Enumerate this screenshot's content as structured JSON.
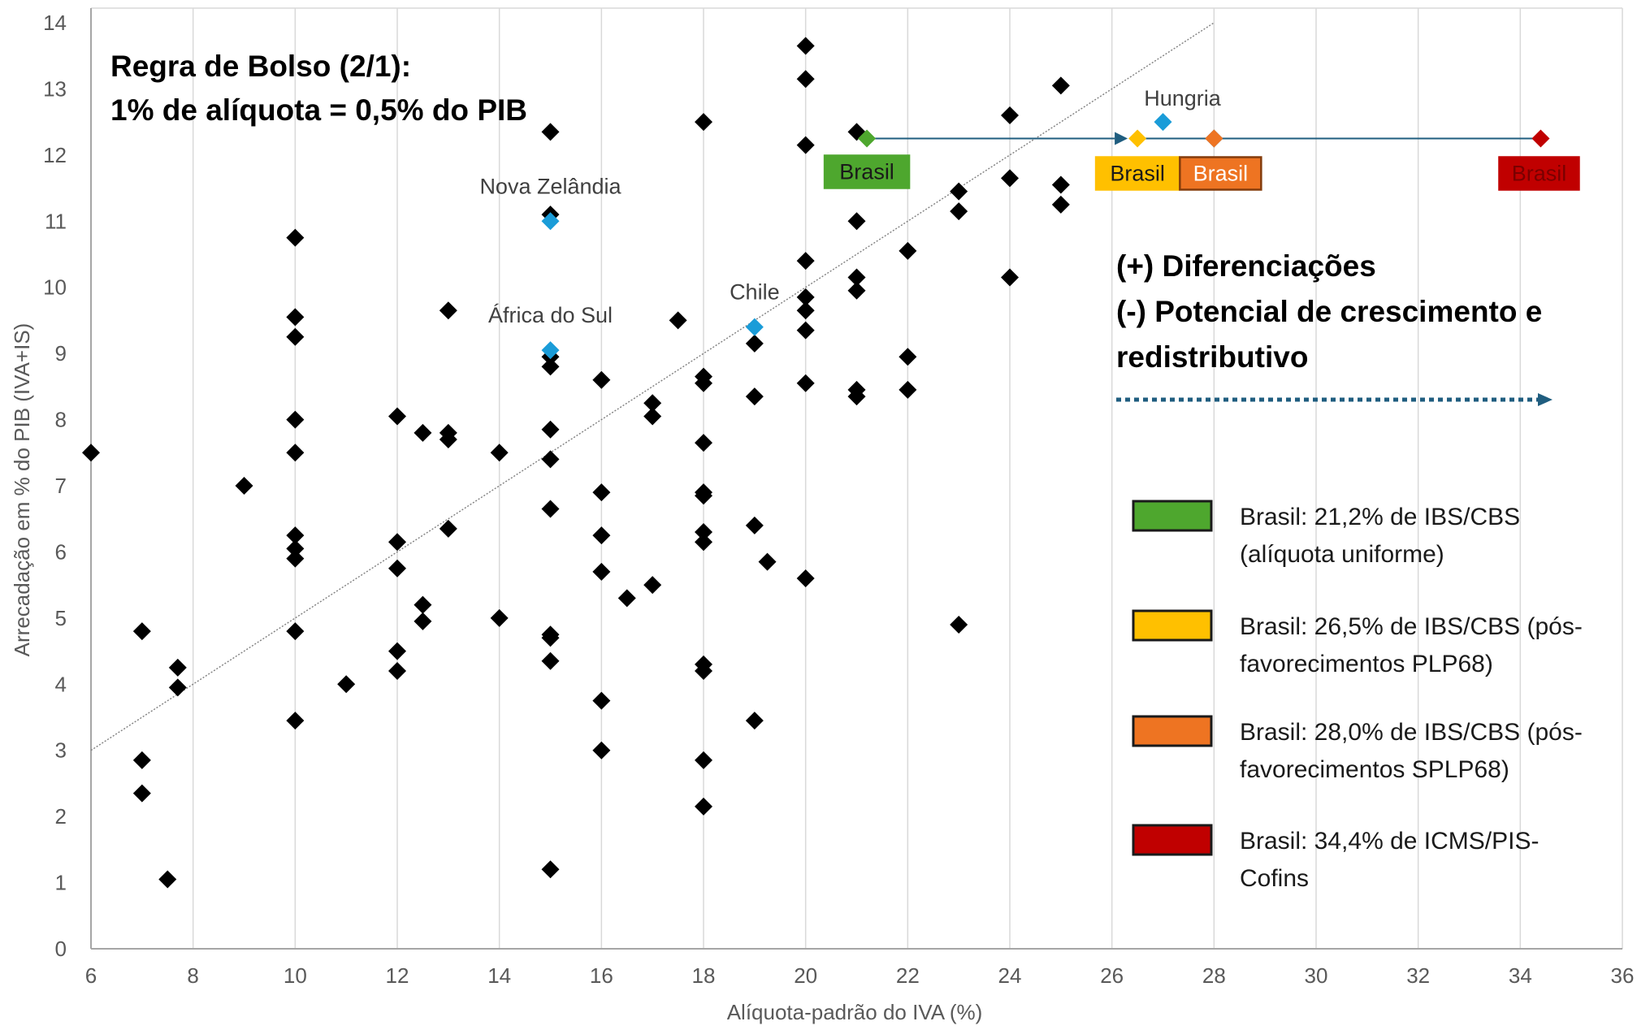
{
  "chart_data": {
    "type": "scatter",
    "xlabel": "Alíquota-padrão do IVA (%)",
    "ylabel": "Arrecadação em % do PIB (IVA+IS)",
    "xlim": [
      6,
      36
    ],
    "ylim": [
      0,
      14
    ],
    "x_ticks": [
      6,
      8,
      10,
      12,
      14,
      16,
      18,
      20,
      22,
      24,
      26,
      28,
      30,
      32,
      34,
      36
    ],
    "y_ticks": [
      0,
      1,
      2,
      3,
      4,
      5,
      6,
      7,
      8,
      9,
      10,
      11,
      12,
      13,
      14
    ],
    "grid": "vertical",
    "colors": {
      "points": "#000000",
      "highlight": "#1a9cd8",
      "brasil_uniform": "#4ea72e",
      "brasil_plp68": "#ffc000",
      "brasil_splp68": "#ee7422",
      "brasil_icms": "#c00000",
      "arrow": "#1f5d7f"
    },
    "trend_line": {
      "x": [
        6,
        28
      ],
      "y": [
        3,
        14
      ]
    },
    "series": [
      {
        "points": [
          [
            6,
            7.5
          ],
          [
            7,
            4.8
          ],
          [
            7,
            2.85
          ],
          [
            7,
            2.35
          ],
          [
            7.5,
            1.05
          ],
          [
            7.7,
            4.25
          ],
          [
            7.7,
            3.95
          ],
          [
            9,
            7.0
          ],
          [
            10,
            10.75
          ],
          [
            10,
            9.55
          ],
          [
            10,
            9.25
          ],
          [
            10,
            8.0
          ],
          [
            10,
            7.5
          ],
          [
            10,
            6.25
          ],
          [
            10,
            6.05
          ],
          [
            10,
            5.9
          ],
          [
            10,
            4.8
          ],
          [
            10,
            3.45
          ],
          [
            11,
            4.0
          ],
          [
            12,
            8.05
          ],
          [
            12,
            6.15
          ],
          [
            12,
            5.75
          ],
          [
            12,
            4.5
          ],
          [
            12,
            4.2
          ],
          [
            12.5,
            7.8
          ],
          [
            12.5,
            5.2
          ],
          [
            12.5,
            4.95
          ],
          [
            13,
            9.65
          ],
          [
            13,
            7.8
          ],
          [
            13,
            7.7
          ],
          [
            13,
            6.35
          ],
          [
            14,
            7.5
          ],
          [
            14,
            5.0
          ],
          [
            15,
            12.35
          ],
          [
            15,
            11.1
          ],
          [
            15,
            8.95
          ],
          [
            15,
            8.8
          ],
          [
            15,
            7.85
          ],
          [
            15,
            7.4
          ],
          [
            15,
            6.65
          ],
          [
            15,
            4.75
          ],
          [
            15,
            4.7
          ],
          [
            15,
            4.35
          ],
          [
            15,
            1.2
          ],
          [
            16,
            8.6
          ],
          [
            16,
            6.9
          ],
          [
            16,
            6.25
          ],
          [
            16,
            5.7
          ],
          [
            16,
            3.75
          ],
          [
            16,
            3.0
          ],
          [
            16.5,
            5.3
          ],
          [
            17,
            8.25
          ],
          [
            17,
            8.05
          ],
          [
            17,
            5.5
          ],
          [
            17.5,
            9.5
          ],
          [
            18,
            12.5
          ],
          [
            18,
            8.65
          ],
          [
            18,
            8.55
          ],
          [
            18,
            7.65
          ],
          [
            18,
            6.9
          ],
          [
            18,
            6.85
          ],
          [
            18,
            6.3
          ],
          [
            18,
            6.15
          ],
          [
            18,
            4.3
          ],
          [
            18,
            4.2
          ],
          [
            18,
            2.85
          ],
          [
            18,
            2.15
          ],
          [
            19,
            9.15
          ],
          [
            19,
            8.35
          ],
          [
            19,
            6.4
          ],
          [
            19,
            3.45
          ],
          [
            19.25,
            5.85
          ],
          [
            20,
            13.65
          ],
          [
            20,
            13.15
          ],
          [
            20,
            12.15
          ],
          [
            20,
            10.4
          ],
          [
            20,
            9.85
          ],
          [
            20,
            9.65
          ],
          [
            20,
            9.35
          ],
          [
            20,
            8.55
          ],
          [
            20,
            5.6
          ],
          [
            21,
            12.35
          ],
          [
            21,
            11.0
          ],
          [
            21,
            10.15
          ],
          [
            21,
            9.95
          ],
          [
            21,
            8.45
          ],
          [
            21,
            8.35
          ],
          [
            22,
            10.55
          ],
          [
            22,
            8.95
          ],
          [
            22,
            8.45
          ],
          [
            23,
            11.45
          ],
          [
            23,
            11.15
          ],
          [
            23,
            4.9
          ],
          [
            24,
            12.6
          ],
          [
            24,
            11.65
          ],
          [
            24,
            10.15
          ],
          [
            25,
            13.05
          ],
          [
            25,
            11.55
          ],
          [
            25,
            11.25
          ],
          [
            28,
            12.25
          ]
        ]
      },
      {
        "points": [
          [
            15,
            11.0
          ],
          [
            15,
            9.05
          ],
          [
            19,
            9.4
          ],
          [
            27,
            12.5
          ]
        ]
      }
    ],
    "point_labels": [
      {
        "text": "Nova Zelândia",
        "x": 15,
        "y": 11.0
      },
      {
        "text": "África do Sul",
        "x": 15,
        "y": 9.05
      },
      {
        "text": "Chile",
        "x": 19,
        "y": 9.4
      },
      {
        "text": "Hungria",
        "x": 27,
        "y": 12.5
      }
    ],
    "brasil_points": [
      {
        "x": 21.2,
        "y": 12.25,
        "label": "Brasil",
        "color": "#4ea72e"
      },
      {
        "x": 26.5,
        "y": 12.25,
        "label": "Brasil",
        "color": "#ffc000"
      },
      {
        "x": 28.0,
        "y": 12.25,
        "label": "Brasil",
        "color": "#ee7422"
      },
      {
        "x": 34.4,
        "y": 12.25,
        "label": "Brasil",
        "color": "#c00000"
      }
    ],
    "annotations": {
      "rule_line1": "Regra de Bolso (2/1):",
      "rule_line2": "1% de alíquota = 0,5% do PIB",
      "diff_line1": "(+) Diferenciações",
      "diff_line2": "(-) Potencial de crescimento e",
      "diff_line3": "redistributivo"
    },
    "legend": [
      {
        "line1": "Brasil: 21,2% de IBS/CBS",
        "line2": "(alíquota uniforme)",
        "color": "#4ea72e"
      },
      {
        "line1": "Brasil: 26,5% de IBS/CBS (pós-",
        "line2": "favorecimentos PLP68)",
        "color": "#ffc000"
      },
      {
        "line1": "Brasil: 28,0% de IBS/CBS (pós-",
        "line2": "favorecimentos SPLP68)",
        "color": "#ee7422"
      },
      {
        "line1": "Brasil: 34,4% de ICMS/PIS-",
        "line2": "Cofins",
        "color": "#c00000"
      }
    ]
  }
}
